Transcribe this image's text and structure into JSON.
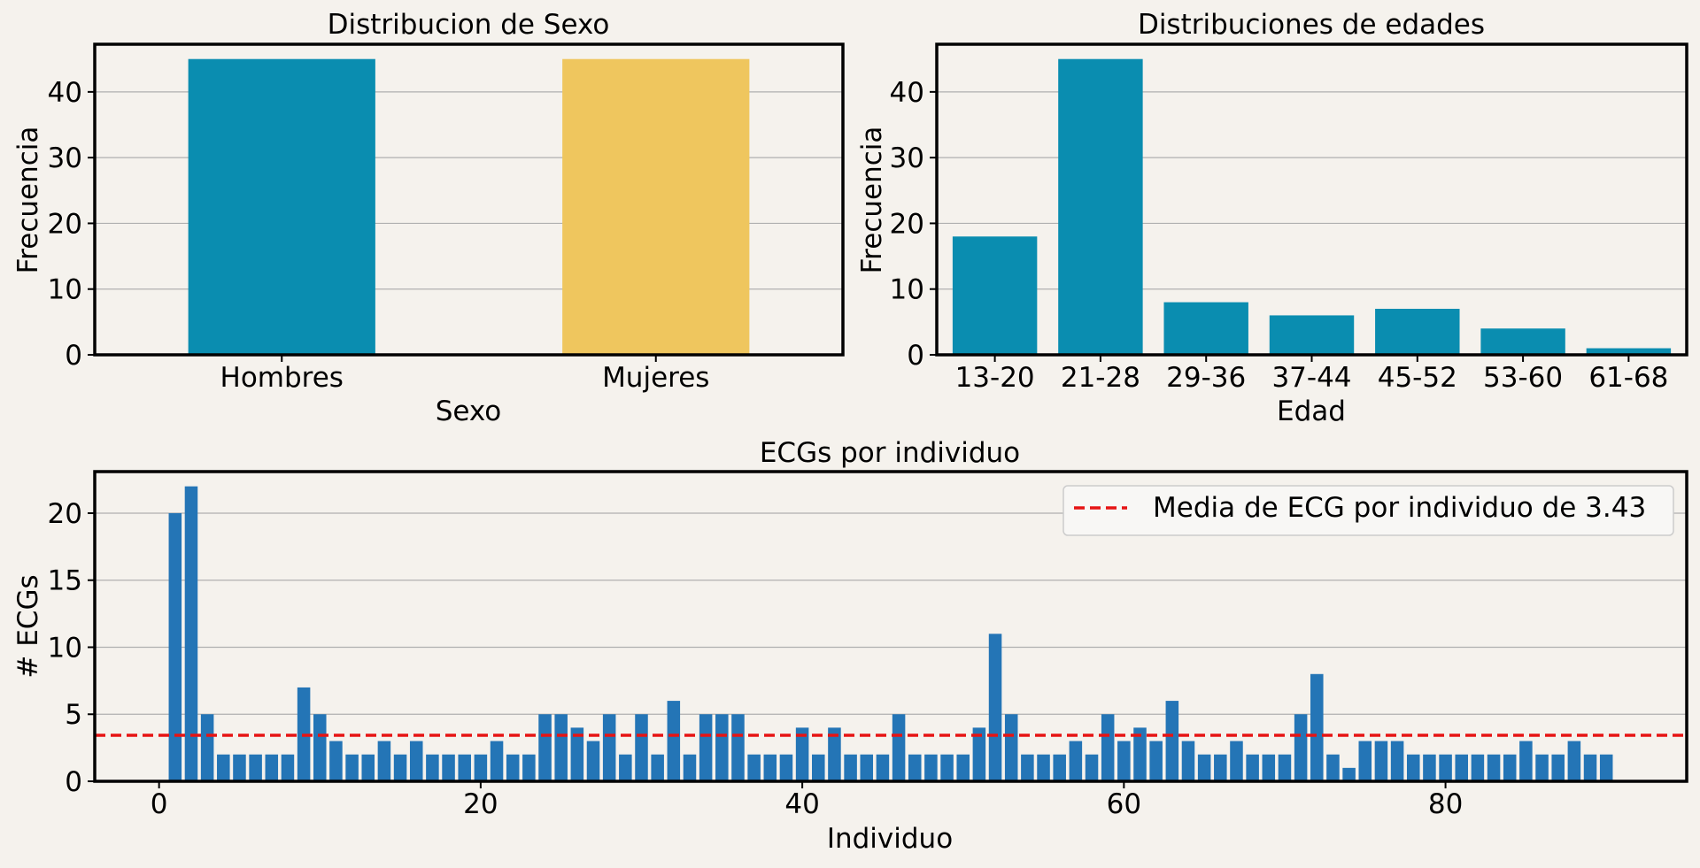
{
  "colors": {
    "background": "#f5f2ed",
    "blue": "#0a8db0",
    "yellow": "#efc65e",
    "bar_blue": "#2475b6",
    "mean_line": "#e61414",
    "grid": "#b0b0b0",
    "axis": "#000000"
  },
  "chart_data": [
    {
      "type": "bar",
      "title": "Distribucion de Sexo",
      "xlabel": "Sexo",
      "ylabel": "Frecuencia",
      "categories": [
        "Hombres",
        "Mujeres"
      ],
      "values": [
        45,
        45
      ],
      "colors": [
        "#0a8db0",
        "#efc65e"
      ],
      "ylim": [
        0,
        47.25
      ],
      "yticks": [
        0,
        10,
        20,
        30,
        40
      ],
      "grid": "y"
    },
    {
      "type": "bar",
      "title": "Distribuciones de edades",
      "xlabel": "Edad",
      "ylabel": "Frecuencia",
      "categories": [
        "13-20",
        "21-28",
        "29-36",
        "37-44",
        "45-52",
        "53-60",
        "61-68"
      ],
      "values": [
        18,
        45,
        8,
        6,
        7,
        4,
        1
      ],
      "ylim": [
        0,
        47.25
      ],
      "yticks": [
        0,
        10,
        20,
        30,
        40
      ],
      "grid": "y"
    },
    {
      "type": "bar",
      "title": "ECGs por individuo",
      "xlabel": "Individuo",
      "ylabel": "# ECGs",
      "x": [
        1,
        2,
        3,
        4,
        5,
        6,
        7,
        8,
        9,
        10,
        11,
        12,
        13,
        14,
        15,
        16,
        17,
        18,
        19,
        20,
        21,
        22,
        23,
        24,
        25,
        26,
        27,
        28,
        29,
        30,
        31,
        32,
        33,
        34,
        35,
        36,
        37,
        38,
        39,
        40,
        41,
        42,
        43,
        44,
        45,
        46,
        47,
        48,
        49,
        50,
        51,
        52,
        53,
        54,
        55,
        56,
        57,
        58,
        59,
        60,
        61,
        62,
        63,
        64,
        65,
        66,
        67,
        68,
        69,
        70,
        71,
        72,
        73,
        74,
        75,
        76,
        77,
        78,
        79,
        80,
        81,
        82,
        83,
        84,
        85,
        86,
        87,
        88,
        89,
        90
      ],
      "values": [
        20,
        22,
        5,
        2,
        2,
        2,
        2,
        2,
        7,
        5,
        3,
        2,
        2,
        3,
        2,
        3,
        2,
        2,
        2,
        2,
        3,
        2,
        2,
        5,
        5,
        4,
        3,
        5,
        2,
        5,
        2,
        6,
        2,
        5,
        5,
        5,
        2,
        2,
        2,
        4,
        2,
        4,
        2,
        2,
        2,
        5,
        2,
        2,
        2,
        2,
        4,
        11,
        5,
        2,
        2,
        2,
        3,
        2,
        5,
        3,
        4,
        3,
        6,
        3,
        2,
        2,
        3,
        2,
        2,
        2,
        5,
        8,
        2,
        1,
        3,
        3,
        3,
        2,
        2,
        2,
        2,
        2,
        2,
        2,
        3,
        2,
        2,
        3,
        2,
        2
      ],
      "xlim": [
        -4,
        95
      ],
      "ylim": [
        0,
        23.1
      ],
      "xticks": [
        0,
        20,
        40,
        60,
        80
      ],
      "yticks": [
        0,
        5,
        10,
        15,
        20
      ],
      "grid": "y",
      "mean_line": {
        "y": 3.43,
        "label": "Media de ECG por individuo de 3.43"
      },
      "legend_position": "top-right"
    }
  ]
}
